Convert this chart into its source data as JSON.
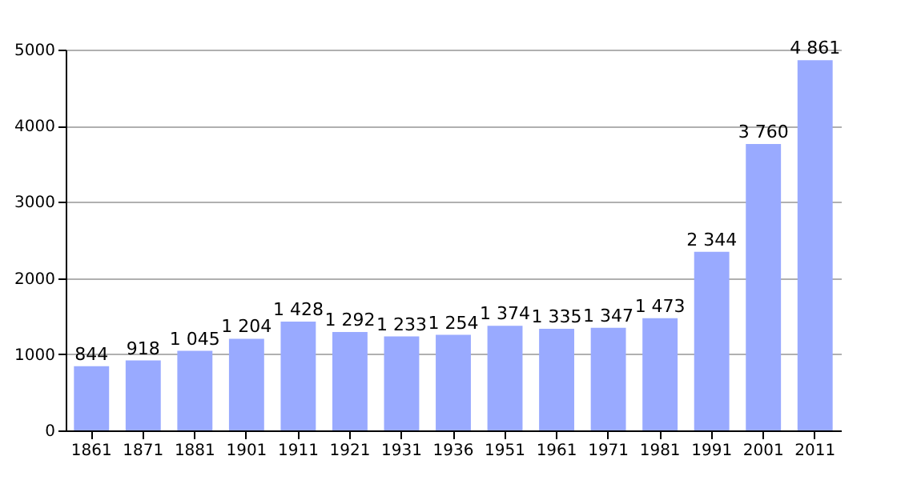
{
  "chart_data": {
    "type": "bar",
    "categories": [
      "1861",
      "1871",
      "1881",
      "1901",
      "1911",
      "1921",
      "1931",
      "1936",
      "1951",
      "1961",
      "1971",
      "1981",
      "1991",
      "2001",
      "2011"
    ],
    "values": [
      844,
      918,
      1045,
      1204,
      1428,
      1292,
      1233,
      1254,
      1374,
      1335,
      1347,
      1473,
      2344,
      3760,
      4861
    ],
    "value_labels": [
      "844",
      "918",
      "1 045",
      "1 204",
      "1 428",
      "1 292",
      "1 233",
      "1 254",
      "1 374",
      "1 335",
      "1 347",
      "1 473",
      "2 344",
      "3 760",
      "4 861"
    ],
    "color": "#99aaff",
    "ylim": [
      0,
      5000
    ],
    "yticks": [
      0,
      1000,
      2000,
      3000,
      4000,
      5000
    ],
    "grid": "y"
  }
}
